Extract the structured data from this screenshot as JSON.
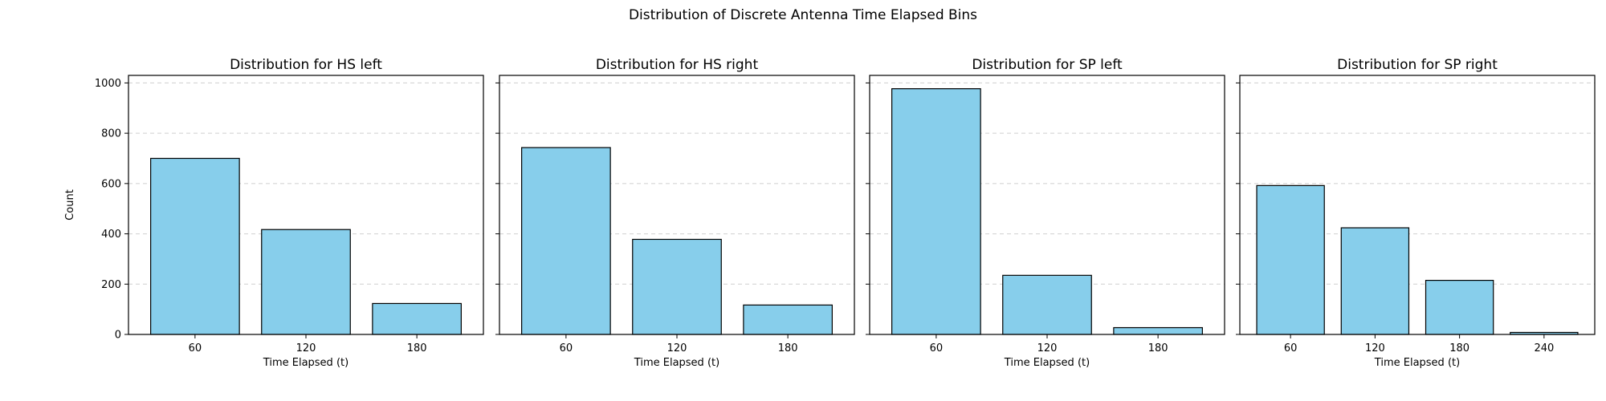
{
  "figure": {
    "title": "Distribution of Discrete Antenna Time Elapsed Bins",
    "bar_color": "#87ceeb",
    "edge_color": "#000000"
  },
  "chart_data": [
    {
      "type": "bar",
      "title": "Distribution for HS left",
      "xlabel": "Time Elapsed (t)",
      "ylabel": "Count",
      "categories": [
        "60",
        "120",
        "180"
      ],
      "values": [
        700,
        417,
        123
      ],
      "ylim": [
        0,
        1030
      ],
      "yticks": [
        0,
        200,
        400,
        600,
        800,
        1000
      ],
      "grid": "y-dashed"
    },
    {
      "type": "bar",
      "title": "Distribution for HS right",
      "xlabel": "Time Elapsed (t)",
      "ylabel": "",
      "categories": [
        "60",
        "120",
        "180"
      ],
      "values": [
        743,
        378,
        117
      ],
      "ylim": [
        0,
        1030
      ],
      "yticks": [
        0,
        200,
        400,
        600,
        800,
        1000
      ],
      "grid": "y-dashed"
    },
    {
      "type": "bar",
      "title": "Distribution for SP left",
      "xlabel": "Time Elapsed (t)",
      "ylabel": "",
      "categories": [
        "60",
        "120",
        "180"
      ],
      "values": [
        977,
        235,
        27
      ],
      "ylim": [
        0,
        1030
      ],
      "yticks": [
        0,
        200,
        400,
        600,
        800,
        1000
      ],
      "grid": "y-dashed"
    },
    {
      "type": "bar",
      "title": "Distribution for SP right",
      "xlabel": "Time Elapsed (t)",
      "ylabel": "",
      "categories": [
        "60",
        "120",
        "180",
        "240"
      ],
      "values": [
        592,
        424,
        215,
        8
      ],
      "ylim": [
        0,
        1030
      ],
      "yticks": [
        0,
        200,
        400,
        600,
        800,
        1000
      ],
      "grid": "y-dashed"
    }
  ]
}
